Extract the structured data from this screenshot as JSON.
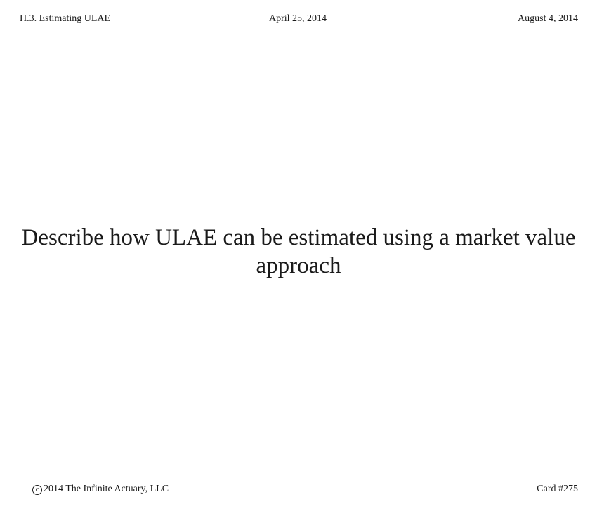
{
  "header": {
    "section": "H.3. Estimating ULAE",
    "date_created": "April 25, 2014",
    "date_updated": "August 4, 2014"
  },
  "card": {
    "question": "Describe how ULAE can be estimated using a market value approach"
  },
  "footer": {
    "copyright_symbol": "c",
    "copyright_text": "2014 The Infinite Actuary, LLC",
    "card_number": "Card #275"
  }
}
